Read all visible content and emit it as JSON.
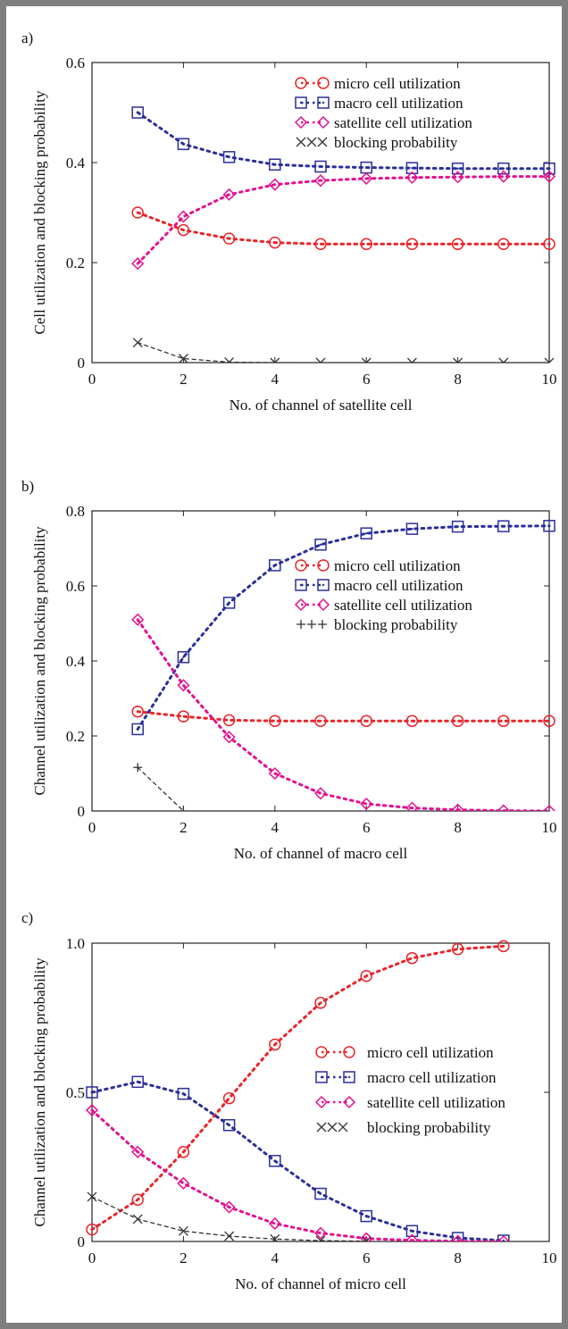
{
  "chart_data": [
    {
      "panel_label": "a)",
      "type": "line",
      "xlabel": "No. of channel of satellite cell",
      "ylabel": "Cell utilization and blocking probability",
      "xlim": [
        0,
        10
      ],
      "ylim": [
        0,
        0.6
      ],
      "x_ticks": [
        "0",
        "2",
        "4",
        "6",
        "8",
        "10"
      ],
      "y_ticks": [
        "0",
        "0.2",
        "0.4",
        "0.6"
      ],
      "legend_position": "top-right",
      "series": [
        {
          "name": "micro cell utilization",
          "marker": "circle",
          "color": "#e8252a",
          "x": [
            1,
            2,
            3,
            4,
            5,
            6,
            7,
            8,
            9,
            10
          ],
          "y": [
            0.3,
            0.265,
            0.248,
            0.24,
            0.237,
            0.237,
            0.237,
            0.237,
            0.237,
            0.237
          ]
        },
        {
          "name": "macro cell utilization",
          "marker": "square",
          "color": "#2b2f9a",
          "x": [
            1,
            2,
            3,
            4,
            5,
            6,
            7,
            8,
            9,
            10
          ],
          "y": [
            0.5,
            0.437,
            0.411,
            0.396,
            0.392,
            0.39,
            0.389,
            0.388,
            0.388,
            0.388
          ]
        },
        {
          "name": "satellite cell utilization",
          "marker": "diamond",
          "color": "#e3118f",
          "x": [
            1,
            2,
            3,
            4,
            5,
            6,
            7,
            8,
            9,
            10
          ],
          "y": [
            0.198,
            0.292,
            0.336,
            0.356,
            0.364,
            0.368,
            0.37,
            0.371,
            0.372,
            0.372
          ]
        },
        {
          "name": "blocking probability",
          "marker": "x",
          "color": "#333333",
          "x": [
            1,
            2,
            3,
            4,
            5,
            6,
            7,
            8,
            9,
            10
          ],
          "y": [
            0.04,
            0.008,
            0.001,
            0,
            0,
            0,
            0,
            0,
            0,
            0
          ]
        }
      ]
    },
    {
      "panel_label": "b)",
      "type": "line",
      "xlabel": "No. of channel of macro cell",
      "ylabel": "Channel utilization and blocking probability",
      "xlim": [
        0,
        10
      ],
      "ylim": [
        0,
        0.8
      ],
      "x_ticks": [
        "0",
        "2",
        "4",
        "6",
        "8",
        "10"
      ],
      "y_ticks": [
        "0",
        "0.2",
        "0.4",
        "0.6",
        "0.8"
      ],
      "legend_position": "center-right",
      "series": [
        {
          "name": "micro cell utilization",
          "marker": "circle",
          "color": "#e8252a",
          "x": [
            1,
            2,
            3,
            4,
            5,
            6,
            7,
            8,
            9,
            10
          ],
          "y": [
            0.265,
            0.252,
            0.242,
            0.24,
            0.24,
            0.24,
            0.24,
            0.24,
            0.24,
            0.24
          ]
        },
        {
          "name": "macro cell utilization",
          "marker": "square",
          "color": "#2b2f9a",
          "x": [
            1,
            2,
            3,
            4,
            5,
            6,
            7,
            8,
            9,
            10
          ],
          "y": [
            0.218,
            0.41,
            0.555,
            0.655,
            0.71,
            0.74,
            0.752,
            0.758,
            0.759,
            0.76
          ]
        },
        {
          "name": "satellite cell utilization",
          "marker": "diamond",
          "color": "#e3118f",
          "x": [
            1,
            2,
            3,
            4,
            5,
            6,
            7,
            8,
            9,
            10
          ],
          "y": [
            0.51,
            0.335,
            0.197,
            0.1,
            0.047,
            0.019,
            0.008,
            0.003,
            0.001,
            0.0
          ]
        },
        {
          "name": "blocking probability",
          "marker": "plus",
          "color": "#333333",
          "x": [
            1,
            2
          ],
          "y": [
            0.116,
            0.0
          ]
        }
      ]
    },
    {
      "panel_label": "c)",
      "type": "line",
      "xlabel": "No. of channel of micro cell",
      "ylabel": "Channel utilization and blocking probability",
      "xlim": [
        0,
        10
      ],
      "ylim": [
        0,
        1.0
      ],
      "x_ticks": [
        "0",
        "2",
        "4",
        "6",
        "8",
        "10"
      ],
      "y_ticks": [
        "0",
        "0.5",
        "1.0"
      ],
      "legend_position": "center-right",
      "series": [
        {
          "name": "micro cell utilization",
          "marker": "circle",
          "color": "#e8252a",
          "x": [
            0,
            1,
            2,
            3,
            4,
            5,
            6,
            7,
            8,
            9
          ],
          "y": [
            0.04,
            0.14,
            0.3,
            0.48,
            0.66,
            0.8,
            0.89,
            0.95,
            0.98,
            0.99
          ]
        },
        {
          "name": "macro cell utilization",
          "marker": "square",
          "color": "#2b2f9a",
          "x": [
            0,
            1,
            2,
            3,
            4,
            5,
            6,
            7,
            8,
            9
          ],
          "y": [
            0.5,
            0.535,
            0.495,
            0.39,
            0.27,
            0.16,
            0.085,
            0.035,
            0.012,
            0.003
          ]
        },
        {
          "name": "satellite cell utilization",
          "marker": "diamond",
          "color": "#e3118f",
          "x": [
            0,
            1,
            2,
            3,
            4,
            5,
            6,
            7,
            8,
            9
          ],
          "y": [
            0.44,
            0.3,
            0.195,
            0.115,
            0.06,
            0.028,
            0.01,
            0.004,
            0.001,
            0.0
          ]
        },
        {
          "name": "blocking probability",
          "marker": "x",
          "color": "#333333",
          "x": [
            0,
            1,
            2,
            3,
            4,
            5,
            6
          ],
          "y": [
            0.15,
            0.075,
            0.035,
            0.018,
            0.008,
            0.003,
            0.001
          ]
        }
      ]
    }
  ]
}
